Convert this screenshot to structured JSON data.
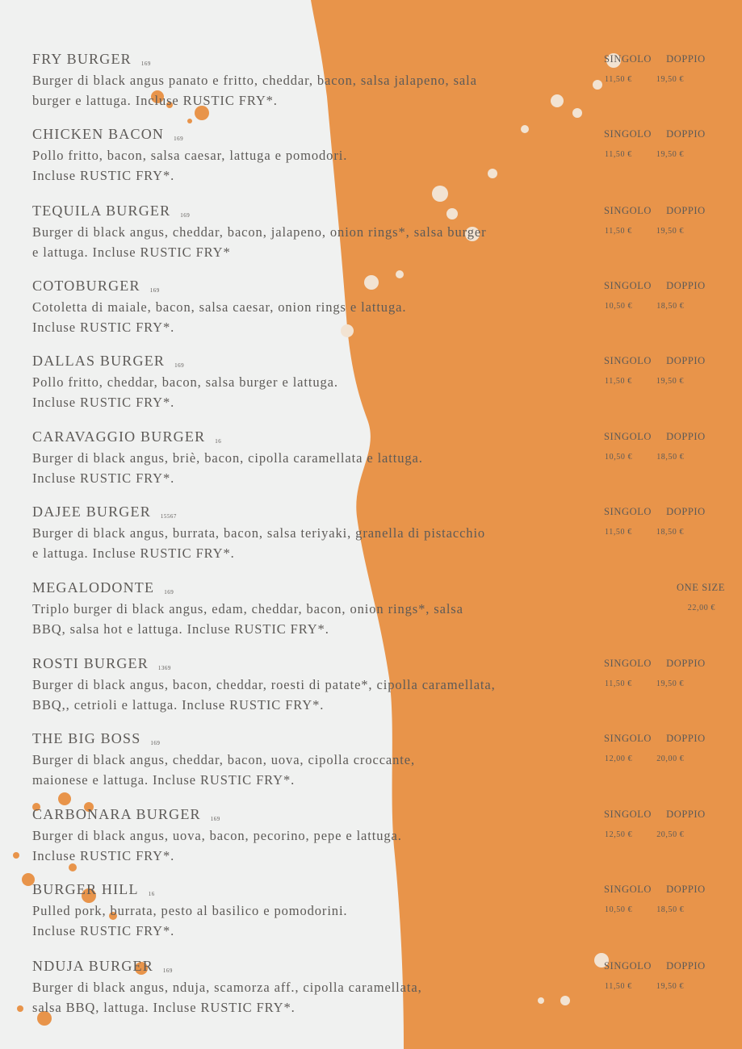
{
  "colors": {
    "background": "#f0f1f0",
    "accent": "#e8944a",
    "text": "#5d5a57"
  },
  "items": [
    {
      "name": "FRY BURGER",
      "allergens": "169",
      "lines": [
        "Burger di black angus panato e fritto, cheddar, bacon, salsa jalapeno, sala",
        "burger e lattuga. Incluse RUSTIC FRY*."
      ],
      "sizes": [
        "SINGOLO",
        "DOPPIO"
      ],
      "prices": [
        "11,50 €",
        "19,50 €"
      ]
    },
    {
      "name": "CHICKEN BACON",
      "allergens": "169",
      "lines": [
        "Pollo fritto, bacon, salsa caesar, lattuga e pomodori.",
        "Incluse RUSTIC FRY*."
      ],
      "sizes": [
        "SINGOLO",
        "DOPPIO"
      ],
      "prices": [
        "11,50 €",
        "19,50 €"
      ]
    },
    {
      "name": "TEQUILA BURGER",
      "allergens": "169",
      "lines": [
        "Burger di black angus, cheddar, bacon, jalapeno, onion rings*, salsa burger",
        "e lattuga. Incluse RUSTIC FRY*"
      ],
      "sizes": [
        "SINGOLO",
        "DOPPIO"
      ],
      "prices": [
        "11,50 €",
        "19,50 €"
      ]
    },
    {
      "name": "COTOBURGER",
      "allergens": "169",
      "lines": [
        "Cotoletta di maiale, bacon, salsa caesar, onion rings e lattuga.",
        "Incluse RUSTIC FRY*."
      ],
      "sizes": [
        "SINGOLO",
        "DOPPIO"
      ],
      "prices": [
        "10,50 €",
        "18,50 €"
      ]
    },
    {
      "name": "DALLAS BURGER",
      "allergens": "169",
      "lines": [
        "Pollo fritto, cheddar, bacon, salsa burger e lattuga.",
        "Incluse RUSTIC FRY*."
      ],
      "sizes": [
        "SINGOLO",
        "DOPPIO"
      ],
      "prices": [
        "11,50 €",
        "19,50 €"
      ]
    },
    {
      "name": "CARAVAGGIO BURGER",
      "allergens": "16",
      "lines": [
        "Burger di black angus, briè, bacon, cipolla caramellata e lattuga.",
        "Incluse RUSTIC FRY*."
      ],
      "sizes": [
        "SINGOLO",
        "DOPPIO"
      ],
      "prices": [
        "10,50 €",
        "18,50 €"
      ]
    },
    {
      "name": "DAJEE BURGER",
      "allergens": "15567",
      "lines": [
        "Burger di black angus, burrata, bacon, salsa teriyaki, granella di pistacchio",
        "e lattuga. Incluse RUSTIC FRY*."
      ],
      "sizes": [
        "SINGOLO",
        "DOPPIO"
      ],
      "prices": [
        "11,50 €",
        "18,50 €"
      ]
    },
    {
      "name": "MEGALODONTE",
      "allergens": "169",
      "lines": [
        "Triplo burger di black angus, edam, cheddar, bacon, onion rings*, salsa",
        "BBQ, salsa hot e lattuga. Incluse RUSTIC FRY*."
      ],
      "sizes": [
        "ONE SIZE"
      ],
      "prices": [
        "22,00 €"
      ]
    },
    {
      "name": "ROSTI BURGER",
      "allergens": "1369",
      "lines": [
        "Burger di black angus, bacon, cheddar, roesti di patate*, cipolla caramellata,",
        "BBQ,, cetrioli e lattuga. Incluse RUSTIC FRY*."
      ],
      "sizes": [
        "SINGOLO",
        "DOPPIO"
      ],
      "prices": [
        "11,50 €",
        "19,50 €"
      ]
    },
    {
      "name": "THE BIG BOSS",
      "allergens": "169",
      "lines": [
        "Burger di black angus, cheddar, bacon, uova, cipolla croccante,",
        "maionese e lattuga. Incluse RUSTIC FRY*."
      ],
      "sizes": [
        "SINGOLO",
        "DOPPIO"
      ],
      "prices": [
        "12,00 €",
        "20,00 €"
      ]
    },
    {
      "name": "CARBONARA BURGER",
      "allergens": "169",
      "lines": [
        "Burger di black angus, uova, bacon, pecorino, pepe e lattuga.",
        "Incluse RUSTIC FRY*."
      ],
      "sizes": [
        "SINGOLO",
        "DOPPIO"
      ],
      "prices": [
        "12,50 €",
        "20,50 €"
      ]
    },
    {
      "name": "BURGER HILL",
      "allergens": "16",
      "lines": [
        "Pulled pork, burrata, pesto al basilico e pomodorini.",
        "Incluse RUSTIC FRY*."
      ],
      "sizes": [
        "SINGOLO",
        "DOPPIO"
      ],
      "prices": [
        "10,50 €",
        "18,50 €"
      ]
    },
    {
      "name": "NDUJA BURGER",
      "allergens": "169",
      "lines": [
        "Burger di black angus, nduja, scamorza aff., cipolla caramellata,",
        "salsa BBQ, lattuga. Incluse RUSTIC FRY*."
      ],
      "sizes": [
        "SINGOLO",
        "DOPPIO"
      ],
      "prices": [
        "11,50 €",
        "19,50 €"
      ]
    }
  ]
}
